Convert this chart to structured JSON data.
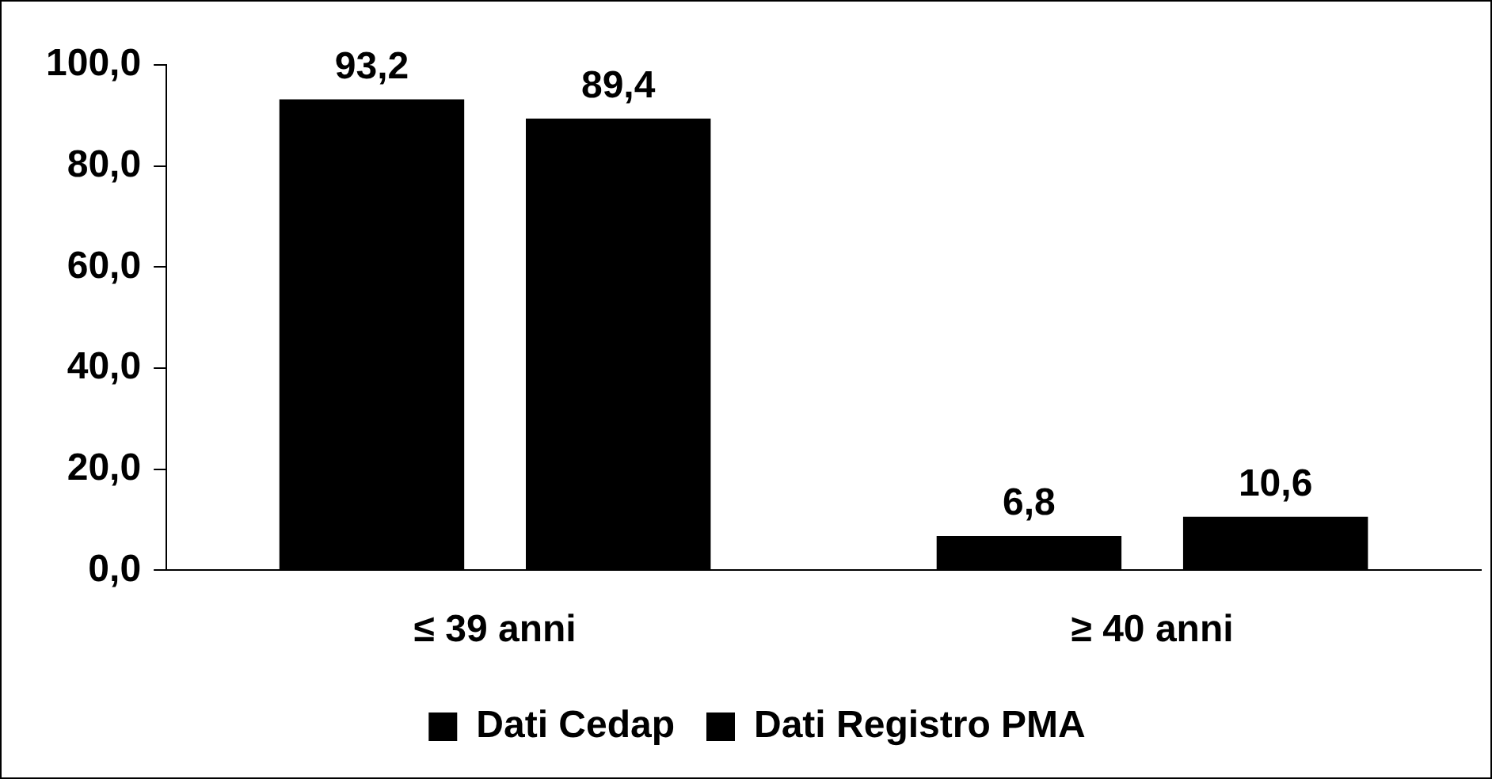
{
  "chart_data": {
    "type": "bar",
    "categories": [
      "≤ 39 anni",
      "≥ 40 anni"
    ],
    "series": [
      {
        "name": "Dati Cedap",
        "color": "#000000",
        "values": [
          93.2,
          6.8
        ],
        "value_labels": [
          "93,2",
          "6,8"
        ]
      },
      {
        "name": "Dati Registro PMA",
        "color": "#000000",
        "values": [
          89.4,
          10.6
        ],
        "value_labels": [
          "89,4",
          "10,6"
        ]
      }
    ],
    "ylim": [
      0,
      100
    ],
    "yticks": [
      {
        "value": 0,
        "label": "0,0"
      },
      {
        "value": 20,
        "label": "20,0"
      },
      {
        "value": 40,
        "label": "40,0"
      },
      {
        "value": 60,
        "label": "60,0"
      },
      {
        "value": 80,
        "label": "80,0"
      },
      {
        "value": 100,
        "label": "100,0"
      }
    ],
    "grid": false,
    "legend": "bottom"
  }
}
